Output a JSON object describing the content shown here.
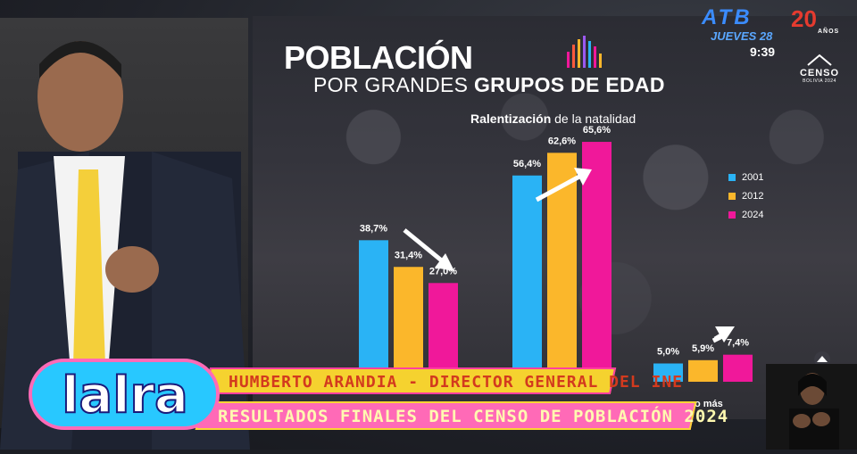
{
  "slide": {
    "title_line1": "POBLACIÓN",
    "title_line2_light": "POR GRANDES ",
    "title_line2_bold": "GRUPOS DE EDAD",
    "subtitle_bold": "Ralentización",
    "subtitle_rest": " de la natalidad",
    "tail_label": "o más"
  },
  "broadcaster": {
    "channel": "ATB",
    "anniversary": "20",
    "anniversary_sub": "AÑOS",
    "date": "JUEVES 28",
    "time": "9:39",
    "census_logo": "CENSO",
    "census_logo_sub": "BOLIVIA 2024"
  },
  "lower_third": {
    "name_line": "HUMBERTO ARANDIA - DIRECTOR GENERAL DEL INE",
    "topic_line": "RESULTADOS FINALES DEL CENSO DE POBLACIÓN 2024",
    "show_logo": "lalra"
  },
  "colors": {
    "s2001": "#2ab3f5",
    "s2012": "#fbb72b",
    "s2024": "#f0189a"
  },
  "chart_data": {
    "type": "bar",
    "title": "POBLACIÓN POR GRANDES GRUPOS DE EDAD",
    "subtitle": "Ralentización de la natalidad",
    "legend_position": "right",
    "series": [
      {
        "name": "2001",
        "color": "#2ab3f5",
        "values": [
          38.7,
          56.4,
          5.0
        ],
        "labels": [
          "38,7%",
          "56,4%",
          "5,0%"
        ]
      },
      {
        "name": "2012",
        "color": "#fbb72b",
        "values": [
          31.4,
          62.6,
          5.9
        ],
        "labels": [
          "31,4%",
          "62,6%",
          "5,9%"
        ]
      },
      {
        "name": "2024",
        "color": "#f0189a",
        "values": [
          27.0,
          65.6,
          7.4
        ],
        "labels": [
          "27,0%",
          "65,6%",
          "7,4%"
        ]
      }
    ],
    "ylim": [
      0,
      70
    ]
  }
}
